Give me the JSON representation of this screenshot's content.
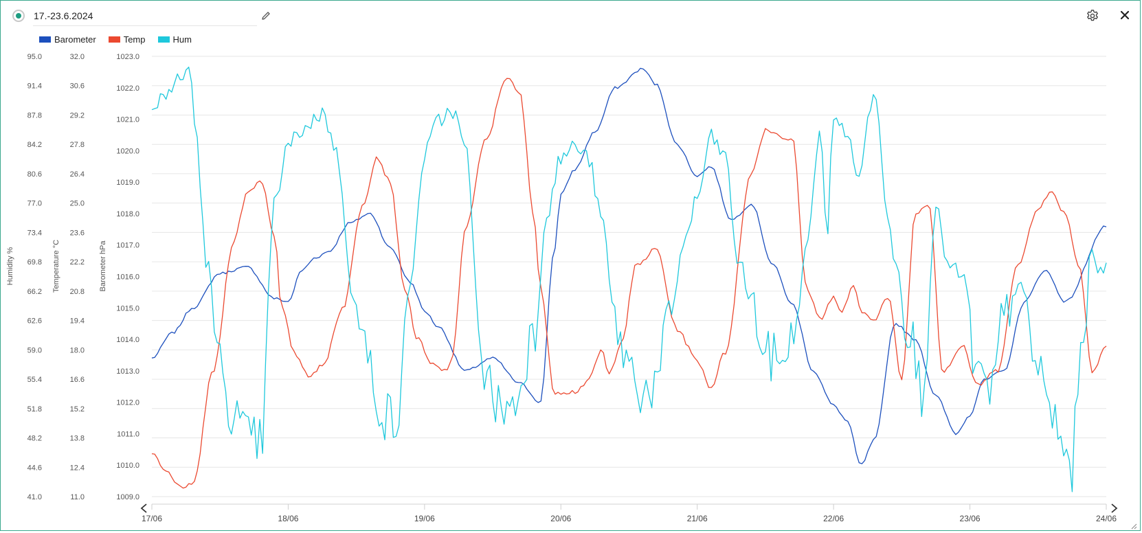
{
  "header": {
    "title": "17.-23.6.2024",
    "icons": {
      "status": "radio-dot-icon",
      "edit": "pencil-icon",
      "settings": "gear-icon",
      "close": "close-icon"
    }
  },
  "colors": {
    "accent": "#1f9d82",
    "barometer": "#1c4fbd",
    "temp": "#eb4930",
    "hum": "#1ec8dc",
    "grid": "#e6e6e6"
  },
  "chart_data": {
    "type": "line",
    "legend": [
      {
        "name": "Barometer",
        "color": "#1c4fbd"
      },
      {
        "name": "Temp",
        "color": "#eb4930"
      },
      {
        "name": "Hum",
        "color": "#1ec8dc"
      }
    ],
    "legend_position": "top-left",
    "grid": true,
    "x_tick_labels": [
      "17/06",
      "18/06",
      "19/06",
      "20/06",
      "21/06",
      "22/06",
      "23/06",
      "24/06"
    ],
    "x_range_days": [
      0,
      7
    ],
    "axes": [
      {
        "id": "hum",
        "label": "Humidity %",
        "min": 41.0,
        "max": 95.0,
        "ticks": [
          "95.0",
          "91.4",
          "87.8",
          "84.2",
          "80.6",
          "77.0",
          "73.4",
          "69.8",
          "66.2",
          "62.6",
          "59.0",
          "55.4",
          "51.8",
          "48.2",
          "44.6",
          "41.0"
        ]
      },
      {
        "id": "temp",
        "label": "Temperature °C",
        "min": 11.0,
        "max": 32.0,
        "ticks": [
          "32.0",
          "30.6",
          "29.2",
          "27.8",
          "26.4",
          "25.0",
          "23.6",
          "22.2",
          "20.8",
          "19.4",
          "18.0",
          "16.6",
          "15.2",
          "13.8",
          "12.4",
          "11.0"
        ]
      },
      {
        "id": "baro",
        "label": "Barometer hPa",
        "min": 1009.0,
        "max": 1023.0,
        "ticks": [
          "1023.0",
          "1022.0",
          "1021.0",
          "1020.0",
          "1019.0",
          "1018.0",
          "1017.0",
          "1016.0",
          "1015.0",
          "1014.0",
          "1013.0",
          "1012.0",
          "1011.0",
          "1010.0",
          "1009.0"
        ]
      }
    ],
    "series": [
      {
        "name": "Barometer",
        "axis": "baro",
        "color": "#1c4fbd",
        "x": [
          0,
          0.15,
          0.3,
          0.5,
          0.7,
          0.9,
          1.0,
          1.1,
          1.2,
          1.3,
          1.45,
          1.6,
          1.75,
          1.9,
          2.0,
          2.1,
          2.3,
          2.5,
          2.7,
          2.85,
          2.95,
          3.0,
          3.1,
          3.25,
          3.4,
          3.6,
          3.7,
          3.85,
          4.0,
          4.1,
          4.25,
          4.4,
          4.55,
          4.7,
          4.85,
          5.0,
          5.1,
          5.2,
          5.3,
          5.45,
          5.6,
          5.75,
          5.9,
          6.0,
          6.1,
          6.25,
          6.4,
          6.55,
          6.7,
          7.0
        ],
        "values": [
          1013.4,
          1014.2,
          1015.0,
          1016.1,
          1016.3,
          1015.3,
          1015.2,
          1016.2,
          1016.6,
          1016.8,
          1017.7,
          1018.0,
          1016.9,
          1015.8,
          1014.9,
          1014.4,
          1013.0,
          1013.4,
          1012.6,
          1012.0,
          1016.8,
          1018.6,
          1019.4,
          1020.6,
          1022.0,
          1022.6,
          1022.1,
          1020.2,
          1019.2,
          1019.5,
          1017.8,
          1018.3,
          1016.4,
          1015.1,
          1013.0,
          1011.9,
          1011.4,
          1010.0,
          1010.8,
          1014.5,
          1014.0,
          1012.2,
          1011.0,
          1011.6,
          1012.7,
          1013.0,
          1015.2,
          1016.2,
          1015.2,
          1017.6
        ]
      },
      {
        "name": "Temp",
        "axis": "temp",
        "color": "#eb4930",
        "x": [
          0,
          0.1,
          0.2,
          0.3,
          0.45,
          0.6,
          0.7,
          0.8,
          0.9,
          0.95,
          1.05,
          1.15,
          1.25,
          1.4,
          1.55,
          1.65,
          1.75,
          1.85,
          1.95,
          2.05,
          2.15,
          2.2,
          2.3,
          2.45,
          2.6,
          2.7,
          2.8,
          2.85,
          2.95,
          3.1,
          3.2,
          3.3,
          3.35,
          3.45,
          3.55,
          3.7,
          3.85,
          4.0,
          4.1,
          4.2,
          4.4,
          4.5,
          4.7,
          4.8,
          4.9,
          5.0,
          5.05,
          5.15,
          5.2,
          5.3,
          5.4,
          5.5,
          5.6,
          5.7,
          5.8,
          5.95,
          6.05,
          6.2,
          6.35,
          6.5,
          6.6,
          6.7,
          6.8,
          6.9,
          7.0
        ],
        "values": [
          13.0,
          12.2,
          11.5,
          11.5,
          17.0,
          23.2,
          25.5,
          26.1,
          23.5,
          20.0,
          17.8,
          16.8,
          17.2,
          20.0,
          25.0,
          27.2,
          26.0,
          21.0,
          18.5,
          17.3,
          17.0,
          17.5,
          23.8,
          28.0,
          31.0,
          30.2,
          24.5,
          21.0,
          16.0,
          16.0,
          16.5,
          18.0,
          16.8,
          18.5,
          22.0,
          22.8,
          19.0,
          17.5,
          16.2,
          17.8,
          26.5,
          28.5,
          28.0,
          21.0,
          19.5,
          20.5,
          19.8,
          21.0,
          19.8,
          19.5,
          20.5,
          16.6,
          24.5,
          25.0,
          17.0,
          18.2,
          16.3,
          17.0,
          22.0,
          24.8,
          25.5,
          24.5,
          22.0,
          17.0,
          18.2
        ]
      },
      {
        "name": "Hum",
        "axis": "hum",
        "color": "#1ec8dc",
        "x": [
          0,
          0.1,
          0.2,
          0.28,
          0.32,
          0.4,
          0.5,
          0.6,
          0.7,
          0.8,
          0.9,
          1.0,
          1.1,
          1.25,
          1.3,
          1.35,
          1.5,
          1.6,
          1.7,
          1.8,
          1.9,
          2.0,
          2.1,
          2.2,
          2.3,
          2.4,
          2.45,
          2.55,
          2.65,
          2.8,
          2.9,
          3.0,
          3.1,
          3.2,
          3.3,
          3.4,
          3.5,
          3.6,
          3.7,
          3.8,
          3.9,
          4.0,
          4.1,
          4.2,
          4.3,
          4.4,
          4.5,
          4.6,
          4.7,
          4.8,
          4.9,
          4.95,
          5.0,
          5.1,
          5.2,
          5.25,
          5.3,
          5.4,
          5.45,
          5.55,
          5.65,
          5.75,
          5.85,
          5.95,
          6.05,
          6.15,
          6.25,
          6.35,
          6.5,
          6.6,
          6.7,
          6.75,
          6.8,
          6.9,
          6.95,
          7.0
        ],
        "values": [
          88.0,
          90.5,
          92.0,
          93.5,
          86.0,
          70.0,
          57.0,
          51.0,
          48.0,
          47.5,
          77.0,
          84.0,
          86.0,
          88.0,
          86.5,
          83.0,
          63.0,
          57.0,
          51.0,
          50.0,
          68.0,
          83.0,
          87.0,
          88.5,
          84.0,
          63.0,
          55.0,
          52.0,
          52.0,
          61.0,
          76.0,
          82.5,
          84.0,
          82.5,
          75.0,
          62.0,
          57.0,
          54.0,
          54.5,
          63.0,
          72.0,
          77.5,
          85.0,
          83.0,
          70.0,
          65.0,
          58.0,
          58.0,
          60.0,
          71.0,
          86.0,
          73.0,
          88.0,
          85.0,
          80.0,
          88.0,
          90.0,
          76.0,
          70.0,
          62.0,
          54.0,
          76.0,
          69.0,
          68.0,
          56.0,
          53.0,
          63.0,
          67.0,
          57.0,
          51.0,
          46.0,
          44.5,
          56.0,
          72.0,
          68.0,
          69.0
        ]
      }
    ]
  }
}
